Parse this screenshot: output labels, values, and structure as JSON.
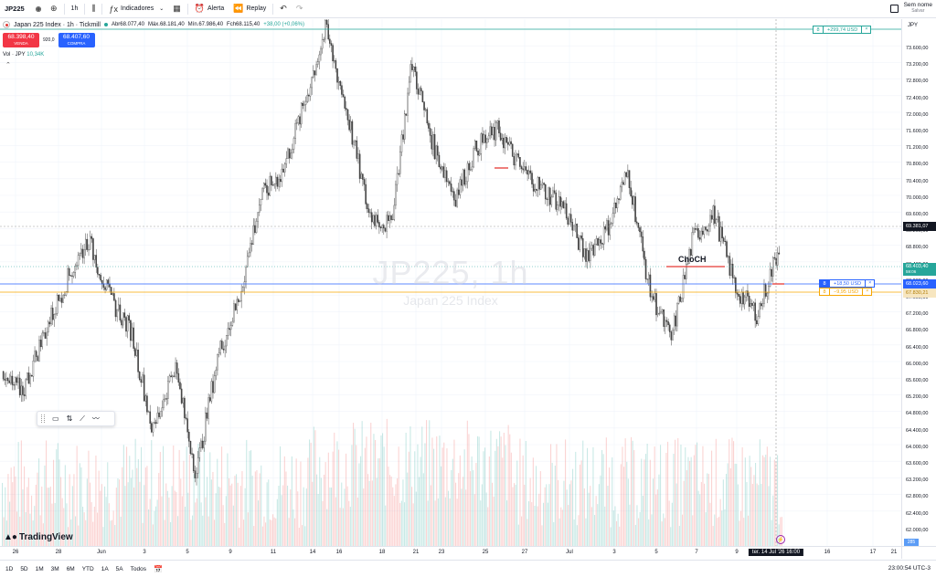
{
  "toolbar": {
    "symbol": "JP225",
    "interval": "1h",
    "indicators_label": "Indicadores",
    "alert_label": "Alerta",
    "replay_label": "Replay",
    "save_title": "Sem nome",
    "save_sub": "Salvar"
  },
  "legend": {
    "title": "Japan 225 Index · 1h · Tickmill",
    "open": "Abr68.077,40",
    "high": "Máx.68.181,40",
    "low": "Mín.67.986,40",
    "close": "Fch68.115,40",
    "change": "+38,00 (+0,06%)",
    "sell_price": "68.398,40",
    "sell_label": "VENDA",
    "spread": "920,0",
    "buy_price": "68.407,60",
    "buy_label": "COMPRA",
    "vol_label": "Vol · JPY",
    "vol_value": "10,34K"
  },
  "watermark": {
    "main": "JP225, 1h",
    "sub": "Japan 225 Index"
  },
  "price_axis": {
    "currency": "JPY",
    "ticks": [
      "73.600,00",
      "73.200,00",
      "72.800,00",
      "72.400,00",
      "72.000,00",
      "71.600,00",
      "71.200,00",
      "70.800,00",
      "70.400,00",
      "70.000,00",
      "69.600,00",
      "69.200,00",
      "68.800,00",
      "68.400,00",
      "68.000,00",
      "67.600,00",
      "67.200,00",
      "66.800,00",
      "66.400,00",
      "66.000,00",
      "65.600,00",
      "65.200,00",
      "64.800,00",
      "64.400,00",
      "64.000,00",
      "63.600,00",
      "63.200,00",
      "62.800,00",
      "62.400,00",
      "62.000,00"
    ],
    "crosshair_price": "69.381,07",
    "last_price": "68.403,40",
    "last_countdown": "59:06",
    "position_price": "68.023,60",
    "order_price": "67.830,21",
    "volume_badge": "285"
  },
  "positions": [
    {
      "qty": "8",
      "pnl": "+299,74 USD",
      "close": "×",
      "color": "#26a69a"
    },
    {
      "qty": "8",
      "pnl": "+18,50 USD",
      "close": "×",
      "color": "#2962ff"
    },
    {
      "qty": "8",
      "pnl": "−9,95 USD",
      "close": "×",
      "color": "#f7a600"
    }
  ],
  "annotation": {
    "choch": "ChoCH"
  },
  "time_axis": {
    "ticks": [
      "26",
      "28",
      "Jun",
      "3",
      "5",
      "9",
      "11",
      "14",
      "16",
      "18",
      "21",
      "23",
      "25",
      "27",
      "Jul",
      "3",
      "5",
      "7",
      "9",
      "12",
      "16",
      "17",
      "21",
      "22"
    ],
    "crosshair_time": "ter. 14 Jul '26   16:00"
  },
  "bottombar": {
    "ranges": [
      "1D",
      "5D",
      "1M",
      "3M",
      "6M",
      "YTD",
      "1A",
      "5A",
      "Todos"
    ],
    "clock": "23:00:54 UTC-3"
  },
  "logo": "TradingView",
  "colors": {
    "up": "#26a69a",
    "down": "#ef5350",
    "candle": "#4a4a4a",
    "accent": "#2962ff"
  },
  "chart_data": {
    "type": "candlestick",
    "x": [
      "May 26",
      "May 28",
      "Jun 1",
      "Jun 3",
      "Jun 5",
      "Jun 9",
      "Jun 11",
      "Jun 14",
      "Jun 16",
      "Jun 18",
      "Jun 21",
      "Jun 23",
      "Jun 25",
      "Jun 27",
      "Jul 1",
      "Jul 3",
      "Jul 5",
      "Jul 7",
      "Jul 9",
      "Jul 12",
      "Jul 14"
    ],
    "close_path": [
      65200,
      65000,
      66400,
      67600,
      68600,
      67200,
      66400,
      64000,
      65600,
      63000,
      65800,
      67200,
      69600,
      70200,
      71800,
      73600,
      71600,
      69200,
      68900,
      72800,
      70800,
      69600,
      70800,
      71200,
      70300,
      69800,
      69400,
      68200,
      68800,
      70200,
      67400,
      66200,
      68600,
      69200,
      67400,
      66800,
      68400
    ],
    "ylim": [
      62000,
      73700
    ],
    "notes": [
      "ChoCH"
    ]
  }
}
